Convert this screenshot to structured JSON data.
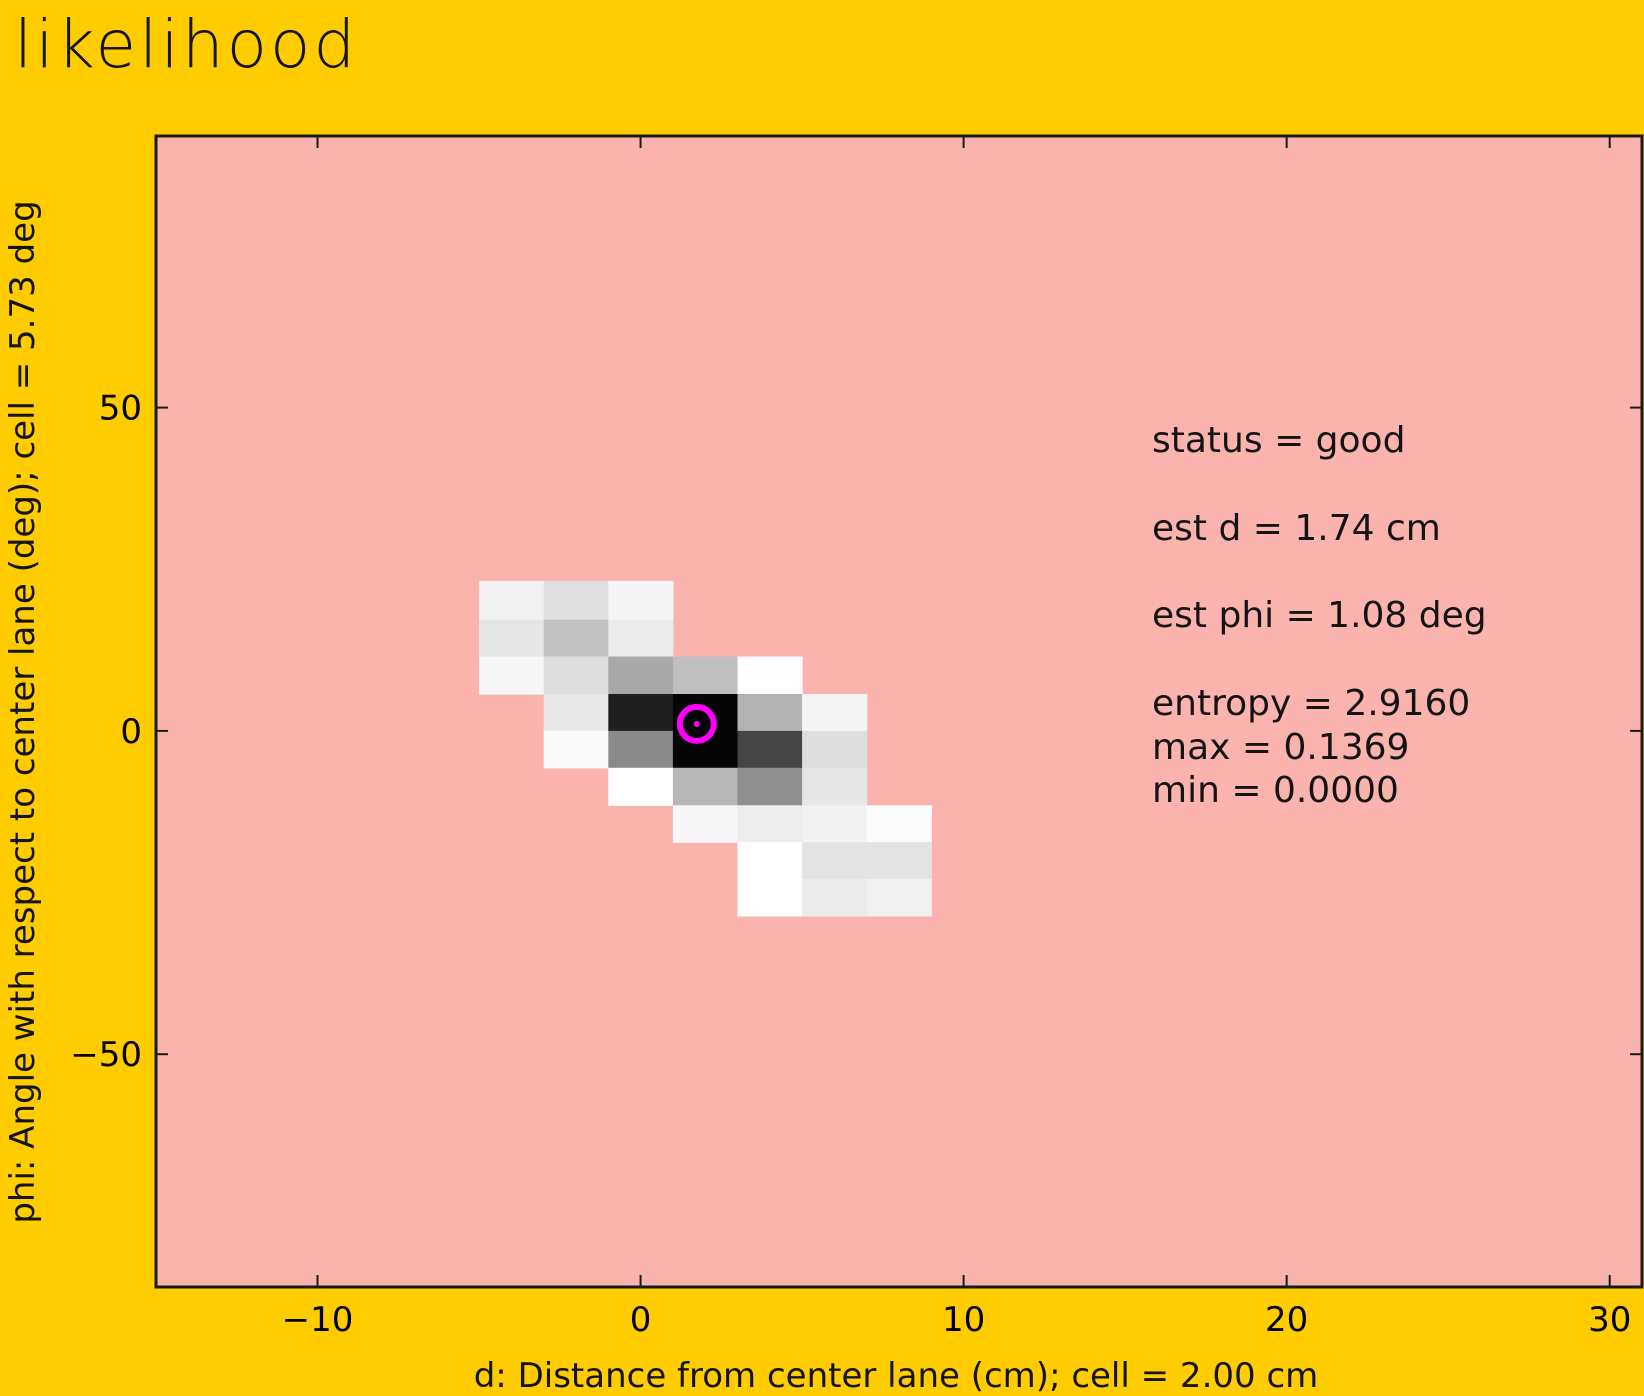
{
  "page": {
    "title": "likelihood"
  },
  "chart_data": {
    "type": "heatmap",
    "title": "",
    "xlabel": "d: Distance from center lane (cm); cell = 2.00 cm",
    "ylabel": "phi: Angle with respect to center lane (deg); cell = 5.73 deg",
    "xlim": [
      -15,
      31
    ],
    "ylim": [
      -86,
      92
    ],
    "x_ticks": [
      -10,
      0,
      10,
      20,
      30
    ],
    "y_ticks": [
      -50,
      0,
      50
    ],
    "x_tick_labels": [
      "−10",
      "0",
      "10",
      "20",
      "30"
    ],
    "y_tick_labels": [
      "−50",
      "0",
      "50"
    ],
    "grid": false,
    "colors": {
      "figure_background": "#ffcc00",
      "plot_background": "#fbb3ae",
      "marker": "#ff00ff",
      "axis": "#1a1a1a"
    },
    "cells": [
      {
        "x0": -5,
        "x1": -3,
        "y0": 17.2,
        "y1": 23.2,
        "value": 0.05
      },
      {
        "x0": -3,
        "x1": -1,
        "y0": 17.2,
        "y1": 23.2,
        "value": 0.12
      },
      {
        "x0": -1,
        "x1": 1,
        "y0": 17.2,
        "y1": 23.2,
        "value": 0.04
      },
      {
        "x0": -5,
        "x1": -3,
        "y0": 11.5,
        "y1": 17.2,
        "value": 0.1
      },
      {
        "x0": -3,
        "x1": -1,
        "y0": 11.5,
        "y1": 17.2,
        "value": 0.24
      },
      {
        "x0": -1,
        "x1": 1,
        "y0": 11.5,
        "y1": 17.2,
        "value": 0.08
      },
      {
        "x0": -5,
        "x1": -3,
        "y0": 5.7,
        "y1": 11.5,
        "value": 0.03
      },
      {
        "x0": -3,
        "x1": -1,
        "y0": 5.7,
        "y1": 11.5,
        "value": 0.13
      },
      {
        "x0": -1,
        "x1": 1,
        "y0": 5.7,
        "y1": 11.5,
        "value": 0.34
      },
      {
        "x0": 1,
        "x1": 3,
        "y0": 5.7,
        "y1": 11.5,
        "value": 0.25
      },
      {
        "x0": 3,
        "x1": 5,
        "y0": 5.7,
        "y1": 11.5,
        "value": 0.0
      },
      {
        "x0": -3,
        "x1": -1,
        "y0": 0,
        "y1": 5.7,
        "value": 0.09
      },
      {
        "x0": -1,
        "x1": 1,
        "y0": 0,
        "y1": 5.7,
        "value": 0.88
      },
      {
        "x0": 1,
        "x1": 3,
        "y0": 0,
        "y1": 5.7,
        "value": 0.98
      },
      {
        "x0": 3,
        "x1": 5,
        "y0": 0,
        "y1": 5.7,
        "value": 0.3
      },
      {
        "x0": 5,
        "x1": 7,
        "y0": 0,
        "y1": 5.7,
        "value": 0.04
      },
      {
        "x0": -3,
        "x1": -1,
        "y0": -5.7,
        "y1": 0,
        "value": 0.02
      },
      {
        "x0": -1,
        "x1": 1,
        "y0": -5.7,
        "y1": 0,
        "value": 0.46
      },
      {
        "x0": 1,
        "x1": 3,
        "y0": -5.7,
        "y1": 0,
        "value": 0.98
      },
      {
        "x0": 3,
        "x1": 5,
        "y0": -5.7,
        "y1": 0,
        "value": 0.73
      },
      {
        "x0": 5,
        "x1": 7,
        "y0": -5.7,
        "y1": 0,
        "value": 0.13
      },
      {
        "x0": -1,
        "x1": 1,
        "y0": -11.5,
        "y1": -5.7,
        "value": 0.0
      },
      {
        "x0": 1,
        "x1": 3,
        "y0": -11.5,
        "y1": -5.7,
        "value": 0.28
      },
      {
        "x0": 3,
        "x1": 5,
        "y0": -11.5,
        "y1": -5.7,
        "value": 0.44
      },
      {
        "x0": 5,
        "x1": 7,
        "y0": -11.5,
        "y1": -5.7,
        "value": 0.1
      },
      {
        "x0": 1,
        "x1": 3,
        "y0": -17.2,
        "y1": -11.5,
        "value": 0.03
      },
      {
        "x0": 3,
        "x1": 5,
        "y0": -17.2,
        "y1": -11.5,
        "value": 0.07
      },
      {
        "x0": 5,
        "x1": 7,
        "y0": -17.2,
        "y1": -11.5,
        "value": 0.05
      },
      {
        "x0": 7,
        "x1": 9,
        "y0": -17.2,
        "y1": -11.5,
        "value": 0.01
      },
      {
        "x0": 3,
        "x1": 5,
        "y0": -22.9,
        "y1": -17.2,
        "value": 0.0
      },
      {
        "x0": 5,
        "x1": 7,
        "y0": -22.9,
        "y1": -17.2,
        "value": 0.11
      },
      {
        "x0": 7,
        "x1": 9,
        "y0": -22.9,
        "y1": -17.2,
        "value": 0.11
      },
      {
        "x0": 3,
        "x1": 5,
        "y0": -28.6,
        "y1": -22.9,
        "value": 0.0
      },
      {
        "x0": 5,
        "x1": 7,
        "y0": -28.6,
        "y1": -22.9,
        "value": 0.08
      },
      {
        "x0": 7,
        "x1": 9,
        "y0": -28.6,
        "y1": -22.9,
        "value": 0.06
      }
    ],
    "estimate": {
      "d": 1.74,
      "phi": 1.08
    },
    "annotations": [
      "status = good",
      "est d = 1.74 cm",
      "est phi = 1.08 deg",
      "entropy = 2.9160",
      "max = 0.1369",
      "min = 0.0000"
    ]
  }
}
